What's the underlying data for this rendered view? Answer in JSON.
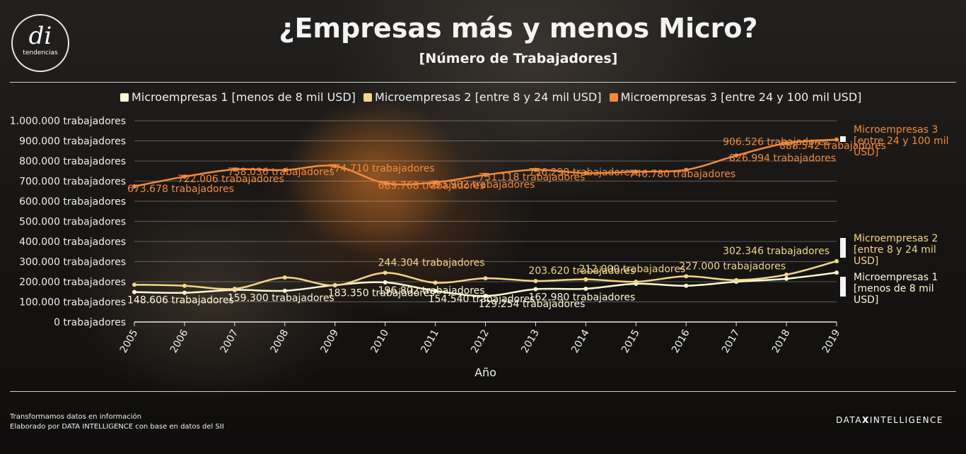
{
  "header": {
    "title": "¿Empresas más y menos Micro?",
    "subtitle": "[Número de Trabajadores]"
  },
  "logo": {
    "mark": "di",
    "sub": "tendencias"
  },
  "footer": {
    "line1": "Transformamos datos en información",
    "line2": "Elaborado por DATA INTELLIGENCE con base en datos del SII",
    "brand_left": "DATA",
    "brand_x": "X",
    "brand_right": "INTELLIGENCE"
  },
  "chart_data": {
    "type": "line",
    "title": "¿Empresas más y menos Micro?",
    "subtitle": "[Número de Trabajadores]",
    "xlabel": "Año",
    "ylabel": "",
    "x": [
      2005,
      2006,
      2007,
      2008,
      2009,
      2010,
      2011,
      2012,
      2013,
      2014,
      2015,
      2016,
      2017,
      2018,
      2019
    ],
    "ylim": [
      0,
      1000000
    ],
    "yticks": [
      0,
      100000,
      200000,
      300000,
      400000,
      500000,
      600000,
      700000,
      800000,
      900000,
      1000000
    ],
    "ytick_labels": [
      "0 trabajadores",
      "100.000 trabajadores",
      "200.000 trabajadores",
      "300.000 trabajadores",
      "400.000 trabajadores",
      "500.000 trabajadores",
      "600.000 trabajadores",
      "700.000 trabajadores",
      "800.000 trabajadores",
      "900.000 trabajadores",
      "1.000.000 trabajadores"
    ],
    "grid": true,
    "legend_position": "top",
    "value_suffix": " trabajadores",
    "series": [
      {
        "name": "Microempresas 1 [menos de 8 mil USD]",
        "end_label": [
          "Microempresas 1",
          "[menos de 8 mil",
          "USD]"
        ],
        "color": "#fff8d8",
        "values": [
          148606,
          145000,
          159300,
          155000,
          183350,
          196802,
          154540,
          129254,
          162980,
          165000,
          190000,
          180000,
          200000,
          215000,
          245000
        ],
        "labels": [
          "148.606",
          "",
          "159.300",
          "",
          "183.350",
          "196.802",
          "154.540",
          "129.254",
          "162.980",
          "",
          "",
          "",
          "",
          "",
          ""
        ]
      },
      {
        "name": "Microempresas 2 [entre 8 y 24 mil USD]",
        "end_label": [
          "Microempresas 2",
          "[entre 8 y 24 mil",
          "USD]"
        ],
        "color": "#f4d588",
        "values": [
          185306,
          180000,
          165000,
          221000,
          182000,
          244304,
          195000,
          217000,
          203620,
          212000,
          200000,
          227000,
          208000,
          235000,
          302346
        ],
        "labels": [
          "",
          "",
          "",
          "",
          "",
          "244.304",
          "",
          "",
          "203.620",
          "212.000",
          "",
          "227.000",
          "",
          "",
          "302.346"
        ]
      },
      {
        "name": "Microempresas 3 [entre 24 y 100 mil USD]",
        "end_label": [
          "Microempresas 3",
          "[entre 24 y 100 mil",
          "USD]"
        ],
        "color": "#f28a3c",
        "values": [
          673678,
          722006,
          758036,
          755000,
          774710,
          689768,
          693902,
          731118,
          756298,
          740000,
          746780,
          756000,
          826994,
          888542,
          906526
        ],
        "labels": [
          "673.678",
          "722.006",
          "758.036",
          "",
          "774.710",
          "689.768",
          "693.902",
          "731.118",
          "756.298",
          "",
          "746.780",
          "",
          "826.994",
          "888.542",
          "906.526"
        ]
      }
    ]
  }
}
